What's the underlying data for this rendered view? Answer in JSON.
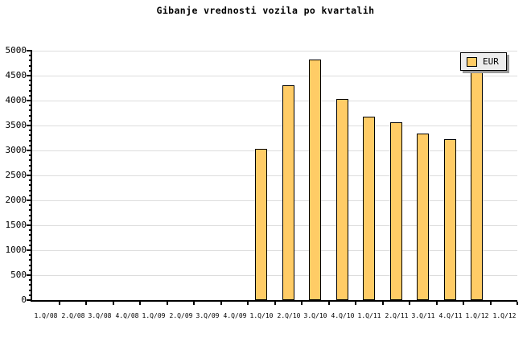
{
  "colors": {
    "background": "#FFFFFF",
    "text": "#000000",
    "axis": "#000000",
    "gridline": "#DDDDDD",
    "bar_fill": "#FFCC66",
    "bar_border": "#000000",
    "legend_bg": "#EDEDED",
    "legend_border": "#000000",
    "legend_shadow": "#999999"
  },
  "chart_data": {
    "type": "bar",
    "title": "Gibanje vrednosti vozila po kvartalih",
    "categories": [
      "1.Q/08",
      "2.Q/08",
      "3.Q/08",
      "4.Q/08",
      "1.Q/09",
      "2.Q/09",
      "3.Q/09",
      "4.Q/09",
      "1.Q/10",
      "2.Q/10",
      "3.Q/10",
      "4.Q/10",
      "1.Q/11",
      "2.Q/11",
      "3.Q/11",
      "4.Q/11",
      "1.Q/12",
      "1.Q/12"
    ],
    "series": [
      {
        "name": "EUR",
        "values": [
          null,
          null,
          null,
          null,
          null,
          null,
          null,
          null,
          3030,
          4300,
          4830,
          4030,
          3680,
          3560,
          3340,
          3230,
          4700,
          null
        ]
      }
    ],
    "xlabel": "",
    "ylabel": "",
    "ylim": [
      0,
      5000
    ],
    "ytick_step": 500,
    "ytick_minor_step": 100,
    "grid": true,
    "legend_position": "top-right"
  }
}
